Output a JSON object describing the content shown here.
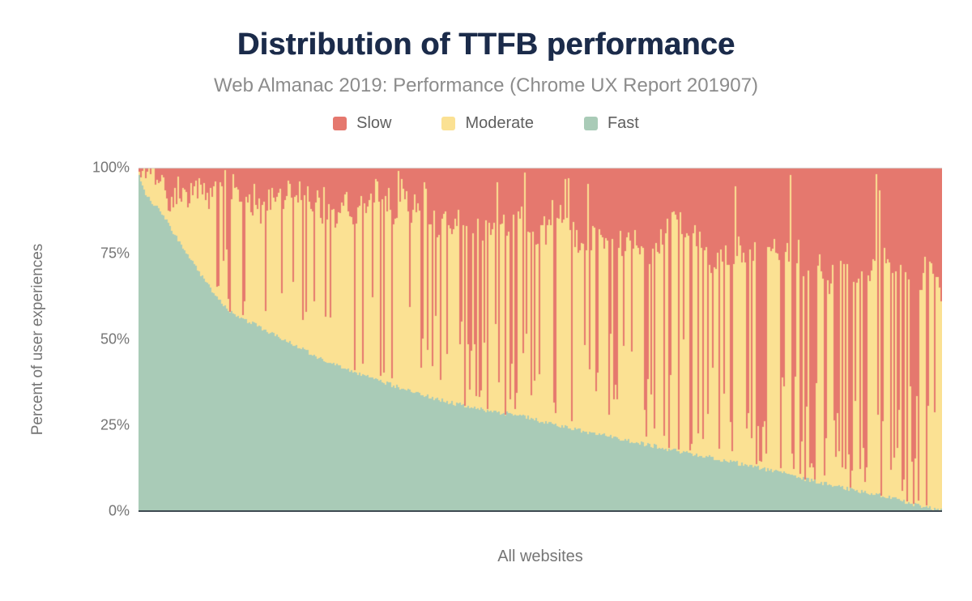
{
  "chart_data": {
    "type": "bar",
    "variant": "stacked-percent-columns",
    "title": "Distribution of TTFB performance",
    "subtitle": "Web Almanac 2019: Performance (Chrome UX Report 201907)",
    "xlabel": "All websites",
    "ylabel": "Percent of user experiences",
    "ylim": [
      0,
      100
    ],
    "grid": "top-boundary-line-only",
    "legend_position": "top-center",
    "axis_colors": {
      "baseline": "#3e4a52",
      "top_line": "#d6d6d6",
      "text": "#757575"
    },
    "y_ticks": [
      {
        "value": 100,
        "label": "100%"
      },
      {
        "value": 75,
        "label": "75%"
      },
      {
        "value": 50,
        "label": "50%"
      },
      {
        "value": 25,
        "label": "25%"
      },
      {
        "value": 0,
        "label": "0%"
      }
    ],
    "series": [
      {
        "name": "Slow",
        "color": "#e5786e"
      },
      {
        "name": "Moderate",
        "color": "#fbe193"
      },
      {
        "name": "Fast",
        "color": "#a9cbb7"
      }
    ],
    "num_bars": 496,
    "sort_order": "fast-share-descending",
    "fast_curve_points": [
      [
        0,
        97.5
      ],
      [
        0.008,
        92
      ],
      [
        0.027,
        87
      ],
      [
        0.054,
        77
      ],
      [
        0.085,
        66
      ],
      [
        0.112,
        58
      ],
      [
        0.13,
        56
      ],
      [
        0.18,
        50
      ],
      [
        0.23,
        44
      ],
      [
        0.28,
        39.5
      ],
      [
        0.33,
        35.5
      ],
      [
        0.38,
        32
      ],
      [
        0.43,
        29.5
      ],
      [
        0.48,
        27.5
      ],
      [
        0.53,
        24.5
      ],
      [
        0.58,
        22
      ],
      [
        0.63,
        19.5
      ],
      [
        0.68,
        17
      ],
      [
        0.735,
        14.5
      ],
      [
        0.785,
        12
      ],
      [
        0.836,
        9
      ],
      [
        0.886,
        6.5
      ],
      [
        0.937,
        3.8
      ],
      [
        0.97,
        1.8
      ],
      [
        0.99,
        0.6
      ],
      [
        1,
        0.2
      ]
    ],
    "generator": {
      "seed": 1337,
      "red_mean_start": 2.5,
      "red_mean_end": 34,
      "walk_decay": 0.86,
      "walk_step": 5.5,
      "jitter": 7,
      "fast_jitter": 1.2,
      "spike_prob_start": 0.07,
      "spike_prob_end": 0.52,
      "spike_depth_pow": 1.6,
      "spike_depth_max": 0.5,
      "tall_prob": 0.05
    }
  }
}
